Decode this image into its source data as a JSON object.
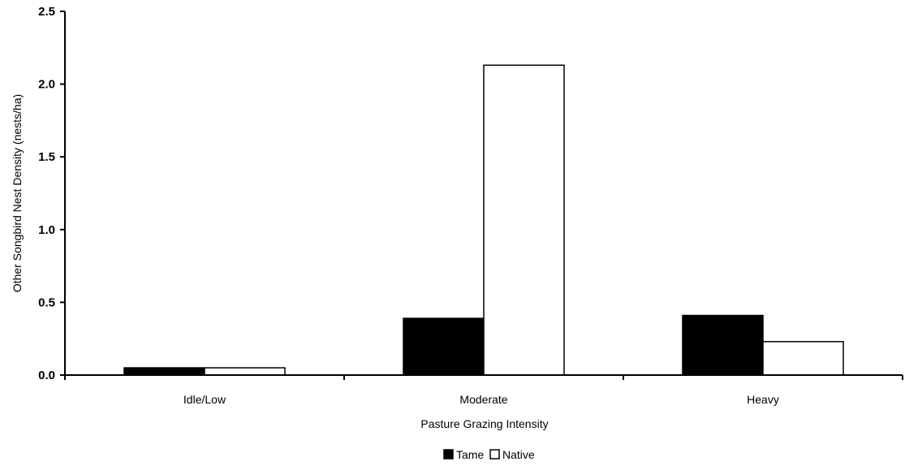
{
  "chart_data": {
    "type": "bar",
    "title": "",
    "xlabel": "Pasture Grazing Intensity",
    "ylabel": "Other Songbird Nest Density (nests/ha)",
    "categories": [
      "Idle/Low",
      "Moderate",
      "Heavy"
    ],
    "series": [
      {
        "name": "Tame",
        "values": [
          0.05,
          0.39,
          0.41
        ],
        "color": "#000000"
      },
      {
        "name": "Native",
        "values": [
          0.05,
          2.13,
          0.23
        ],
        "color": "#ffffff"
      }
    ],
    "ylim": [
      0,
      2.5
    ],
    "yticks": [
      0.0,
      0.5,
      1.0,
      1.5,
      2.0,
      2.5
    ],
    "ytick_labels": [
      "0.0",
      "0.5",
      "1.0",
      "1.5",
      "2.0",
      "2.5"
    ],
    "grid": false,
    "legend_position": "bottom-center"
  }
}
